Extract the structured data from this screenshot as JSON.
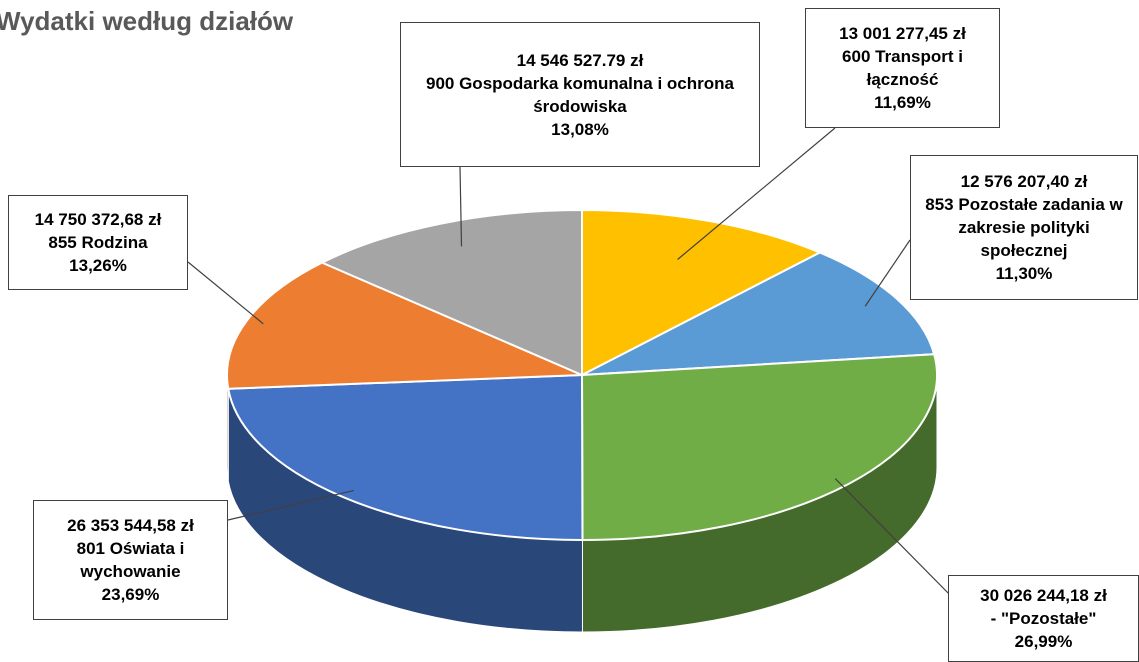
{
  "chart_data": {
    "type": "pie3d",
    "title": "Wydatki według działów",
    "categories": [
      "600 Transport i łączność",
      "853 Pozostałe zadania w zakresie polityki społecznej",
      "- \"Pozostałe\"",
      "801 Oświata i wychowanie",
      "855 Rodzina",
      "900 Gospodarka komunalna i ochrona środowiska"
    ],
    "values": [
      13001277.45,
      12576207.4,
      30026244.18,
      26353544.58,
      14750372.68,
      14546527.79
    ],
    "value_labels": [
      "13 001 277,45 zł",
      "12 576 207,40 zł",
      "30 026 244,18 zł",
      "26 353 544,58 zł",
      "14 750 372,68 zł",
      "14 546 527.79 zł"
    ],
    "percents": [
      11.69,
      11.3,
      26.99,
      23.69,
      13.26,
      13.08
    ],
    "percent_labels": [
      "11,69%",
      "11,30%",
      "26,99%",
      "23,69%",
      "13,26%",
      "13,08%"
    ],
    "colors": [
      "#ffc000",
      "#5b9bd5",
      "#70ad47",
      "#4472c4",
      "#ed7d31",
      "#a5a5a5"
    ]
  }
}
